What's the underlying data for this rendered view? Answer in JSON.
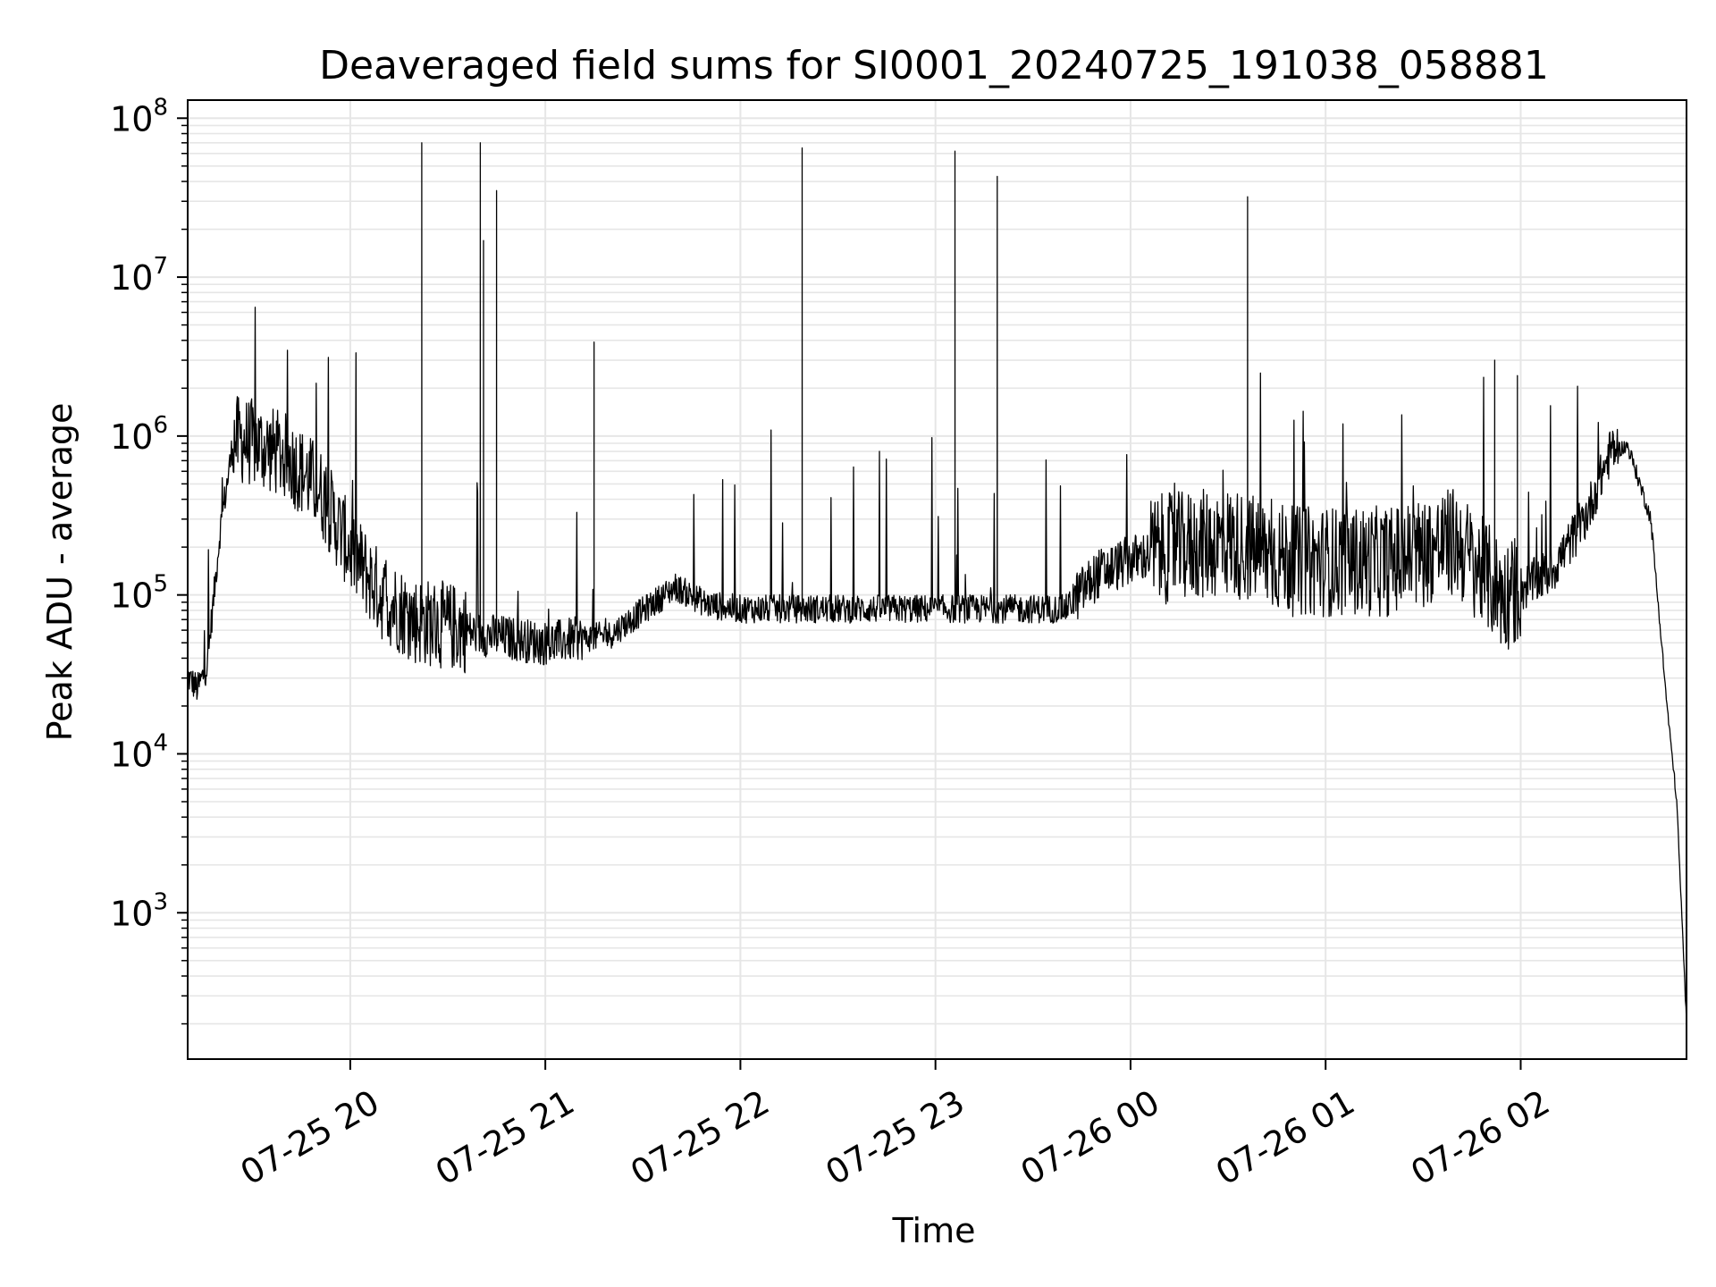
{
  "chart_data": {
    "type": "line",
    "title": "Deaveraged field sums for SI0001_20240725_191038_058881",
    "xlabel": "Time",
    "ylabel": "Peak ADU - average",
    "yscale": "log",
    "grid": true,
    "line_color": "#000000",
    "grid_color": "#e6e6e6",
    "xlim": [
      "2024-07-25 19:10",
      "2024-07-26 02:51"
    ],
    "ylim": [
      120,
      130000000
    ],
    "x_ticks": [
      {
        "value": "2024-07-25 20:00",
        "label": "07-25 20"
      },
      {
        "value": "2024-07-25 21:00",
        "label": "07-25 21"
      },
      {
        "value": "2024-07-25 22:00",
        "label": "07-25 22"
      },
      {
        "value": "2024-07-25 23:00",
        "label": "07-25 23"
      },
      {
        "value": "2024-07-26 00:00",
        "label": "07-26 00"
      },
      {
        "value": "2024-07-26 01:00",
        "label": "07-26 01"
      },
      {
        "value": "2024-07-26 02:00",
        "label": "07-26 02"
      }
    ],
    "y_ticks": [
      {
        "value": 1000,
        "base": "10",
        "exp": "3"
      },
      {
        "value": 10000,
        "base": "10",
        "exp": "4"
      },
      {
        "value": 100000,
        "base": "10",
        "exp": "5"
      },
      {
        "value": 1000000,
        "base": "10",
        "exp": "6"
      },
      {
        "value": 10000000,
        "base": "10",
        "exp": "7"
      },
      {
        "value": 100000000,
        "base": "10",
        "exp": "8"
      }
    ],
    "series": [
      {
        "baseline": [
          [
            "2024-07-25 19:10",
            30000
          ],
          [
            "2024-07-25 19:13",
            25000
          ],
          [
            "2024-07-25 19:16",
            35000
          ],
          [
            "2024-07-25 19:20",
            250000
          ],
          [
            "2024-07-25 19:24",
            900000
          ],
          [
            "2024-07-25 19:30",
            850000
          ],
          [
            "2024-07-25 19:40",
            700000
          ],
          [
            "2024-07-25 19:50",
            450000
          ],
          [
            "2024-07-25 20:00",
            180000
          ],
          [
            "2024-07-25 20:10",
            90000
          ],
          [
            "2024-07-25 20:20",
            65000
          ],
          [
            "2024-07-25 20:40",
            55000
          ],
          [
            "2024-07-25 21:00",
            48000
          ],
          [
            "2024-07-25 21:20",
            55000
          ],
          [
            "2024-07-25 21:40",
            110000
          ],
          [
            "2024-07-25 21:50",
            85000
          ],
          [
            "2024-07-25 22:00",
            80000
          ],
          [
            "2024-07-25 23:00",
            80000
          ],
          [
            "2024-07-25 23:40",
            80000
          ],
          [
            "2024-07-25 23:50",
            130000
          ],
          [
            "2024-07-26 00:00",
            160000
          ],
          [
            "2024-07-26 00:10",
            180000
          ],
          [
            "2024-07-26 00:30",
            200000
          ],
          [
            "2024-07-26 00:50",
            150000
          ],
          [
            "2024-07-26 01:20",
            150000
          ],
          [
            "2024-07-26 01:40",
            200000
          ],
          [
            "2024-07-26 01:55",
            90000
          ],
          [
            "2024-07-26 02:10",
            140000
          ],
          [
            "2024-07-26 02:20",
            300000
          ],
          [
            "2024-07-26 02:28",
            800000
          ],
          [
            "2024-07-26 02:33",
            850000
          ],
          [
            "2024-07-26 02:40",
            300000
          ],
          [
            "2024-07-26 02:45",
            20000
          ],
          [
            "2024-07-26 02:48",
            5000
          ],
          [
            "2024-07-26 02:51",
            200
          ]
        ],
        "spikes": [
          [
            "2024-07-25 20:22",
            70000000
          ],
          [
            "2024-07-25 20:40",
            70000000
          ],
          [
            "2024-07-25 20:41",
            17000000
          ],
          [
            "2024-07-25 20:45",
            35000000
          ],
          [
            "2024-07-25 21:15",
            3900000
          ],
          [
            "2024-07-25 22:19",
            65000000
          ],
          [
            "2024-07-25 23:06",
            62000000
          ],
          [
            "2024-07-25 23:19",
            43000000
          ],
          [
            "2024-07-26 00:36",
            32000000
          ],
          [
            "2024-07-26 01:52",
            3000000
          ],
          [
            "2024-07-26 01:59",
            2400000
          ]
        ]
      }
    ]
  }
}
